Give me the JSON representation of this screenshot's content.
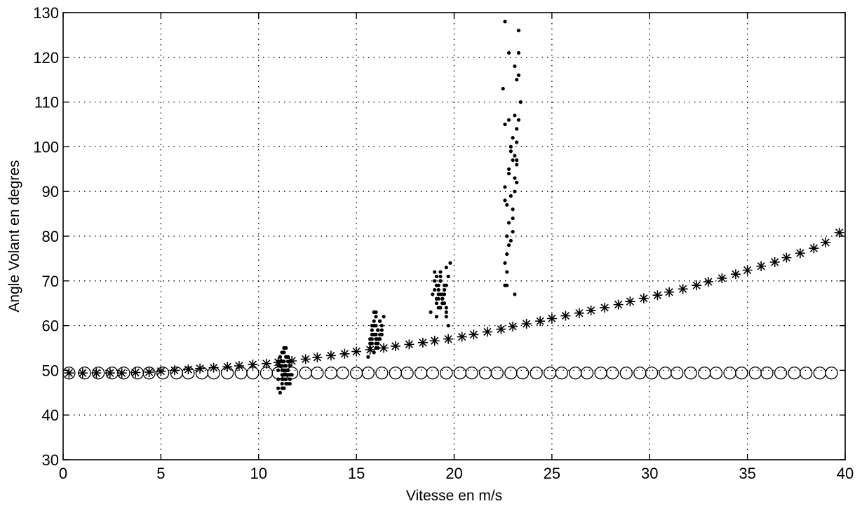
{
  "chart_data": {
    "type": "scatter",
    "title": "",
    "xlabel": "Vitesse en m/s",
    "ylabel": "Angle Volant en degres",
    "xlim": [
      0,
      40
    ],
    "ylim": [
      30,
      130
    ],
    "xticks": [
      "0",
      "5",
      "10",
      "15",
      "20",
      "25",
      "30",
      "35",
      "40"
    ],
    "yticks": [
      "30",
      "40",
      "50",
      "60",
      "70",
      "80",
      "90",
      "100",
      "110",
      "120",
      "130"
    ],
    "grid": true,
    "legend": "none",
    "series": [
      {
        "marker": "circle",
        "color": "#000000",
        "x": [
          0.3,
          1.1,
          1.8,
          2.5,
          3.1,
          3.8,
          4.4,
          5.1,
          5.8,
          6.4,
          7.1,
          7.7,
          8.4,
          9.1,
          9.7,
          10.4,
          11.0,
          11.7,
          12.4,
          13.0,
          13.7,
          14.3,
          15.0,
          15.6,
          16.3,
          17.0,
          17.6,
          18.3,
          18.9,
          19.6,
          20.3,
          20.9,
          21.6,
          22.2,
          22.9,
          23.5,
          24.2,
          24.9,
          25.5,
          26.2,
          26.8,
          27.5,
          28.1,
          28.8,
          29.5,
          30.1,
          30.8,
          31.4,
          32.1,
          32.8,
          33.4,
          34.1,
          34.7,
          35.4,
          36.0,
          36.7,
          37.4,
          38.0,
          38.7,
          39.3
        ],
        "y": [
          49.4,
          49.4,
          49.4,
          49.4,
          49.4,
          49.4,
          49.4,
          49.4,
          49.4,
          49.4,
          49.4,
          49.4,
          49.4,
          49.4,
          49.4,
          49.4,
          49.4,
          49.4,
          49.4,
          49.4,
          49.4,
          49.4,
          49.4,
          49.4,
          49.4,
          49.4,
          49.4,
          49.4,
          49.4,
          49.4,
          49.4,
          49.4,
          49.4,
          49.4,
          49.4,
          49.4,
          49.4,
          49.4,
          49.4,
          49.4,
          49.4,
          49.4,
          49.4,
          49.4,
          49.4,
          49.4,
          49.4,
          49.4,
          49.4,
          49.4,
          49.4,
          49.4,
          49.4,
          49.4,
          49.4,
          49.4,
          49.4,
          49.4,
          49.4,
          49.4
        ]
      },
      {
        "marker": "star",
        "color": "#000000",
        "x": [
          0.3,
          1.0,
          1.7,
          2.4,
          3.0,
          3.7,
          4.4,
          5.0,
          5.7,
          6.4,
          7.0,
          7.7,
          8.4,
          9.0,
          9.7,
          10.4,
          11.0,
          11.7,
          12.4,
          13.0,
          13.7,
          14.4,
          15.0,
          15.7,
          16.4,
          17.0,
          17.7,
          18.4,
          19.0,
          19.7,
          20.4,
          21.0,
          21.7,
          22.4,
          23.0,
          23.7,
          24.4,
          25.0,
          25.7,
          26.4,
          27.0,
          27.7,
          28.4,
          29.0,
          29.7,
          30.4,
          31.0,
          31.7,
          32.4,
          33.0,
          33.7,
          34.4,
          35.0,
          35.7,
          36.4,
          37.0,
          37.7,
          38.4,
          39.0,
          39.7
        ],
        "y": [
          49.4,
          49.4,
          49.4,
          49.4,
          49.4,
          49.5,
          49.6,
          49.8,
          50.0,
          50.2,
          50.4,
          50.6,
          50.8,
          51.0,
          51.3,
          51.5,
          51.8,
          52.1,
          52.5,
          52.9,
          53.3,
          53.7,
          54.2,
          54.6,
          55.0,
          55.4,
          55.8,
          56.2,
          56.6,
          57.0,
          57.5,
          58.0,
          58.6,
          59.2,
          59.8,
          60.4,
          61.0,
          61.6,
          62.2,
          62.8,
          63.4,
          64.0,
          64.7,
          65.4,
          66.1,
          66.8,
          67.5,
          68.2,
          69.0,
          69.8,
          70.6,
          71.5,
          72.4,
          73.3,
          74.2,
          75.2,
          76.2,
          77.3,
          78.6,
          80.8
        ]
      },
      {
        "marker": "dot",
        "color": "#000000",
        "x": [
          11.0,
          11.1,
          11.3,
          11.4,
          11.2,
          11.5,
          11.6,
          11.0,
          11.3,
          11.2,
          11.4,
          11.1,
          11.5,
          11.6,
          11.3,
          11.2,
          11.0,
          11.4,
          11.7,
          11.3,
          11.1,
          11.5,
          11.2,
          11.4,
          11.3,
          11.6,
          11.0,
          11.2,
          11.4,
          11.5,
          11.3,
          11.1,
          11.2,
          11.4,
          11.6,
          11.3,
          11.5,
          11.2,
          11.0,
          11.3,
          11.4,
          11.1,
          11.5,
          11.3,
          11.2,
          11.4,
          11.6,
          11.3,
          11.2,
          11.5,
          15.6,
          15.7,
          15.8,
          15.9,
          16.0,
          16.1,
          16.2,
          16.3,
          16.4,
          15.8,
          15.9,
          16.0,
          16.1,
          16.2,
          15.7,
          15.9,
          16.0,
          16.1,
          16.3,
          15.8,
          16.0,
          16.2,
          15.9,
          16.1,
          15.8,
          16.0,
          15.7,
          16.2,
          16.0,
          15.9,
          16.1,
          15.8,
          16.3,
          16.0,
          18.8,
          18.9,
          19.0,
          19.1,
          19.2,
          19.3,
          19.4,
          19.5,
          19.6,
          19.7,
          19.8,
          19.0,
          19.1,
          19.2,
          19.3,
          19.4,
          19.5,
          19.6,
          19.1,
          19.2,
          19.3,
          19.4,
          19.5,
          19.6,
          19.0,
          19.2,
          19.4,
          19.3,
          19.5,
          19.7,
          19.1,
          19.3,
          19.2,
          19.4,
          19.6,
          19.3,
          19.5,
          19.2,
          19.4,
          19.1,
          19.3,
          19.6,
          22.5,
          22.6,
          22.7,
          22.8,
          22.9,
          23.0,
          23.1,
          23.2,
          23.3,
          23.4,
          22.6,
          22.7,
          22.8,
          23.0,
          23.1,
          23.2,
          23.3,
          22.6,
          22.8,
          23.0,
          23.2,
          23.3,
          22.7,
          22.9,
          23.1,
          23.2,
          22.6,
          22.8,
          23.0,
          23.1,
          23.3,
          22.7,
          22.9,
          23.1,
          23.2,
          22.6,
          22.8,
          23.0,
          23.2,
          22.7,
          22.9,
          23.1,
          22.6,
          22.8
        ],
        "y": [
          46.0,
          53.0,
          50.0,
          55.0,
          48.0,
          52.0,
          47.0,
          51.0,
          49.0,
          54.0,
          50.0,
          45.0,
          53.0,
          51.0,
          48.0,
          52.0,
          50.0,
          47.0,
          49.0,
          55.0,
          51.0,
          50.0,
          46.0,
          53.0,
          52.0,
          49.0,
          48.0,
          54.0,
          51.0,
          47.0,
          50.0,
          52.0,
          49.0,
          53.0,
          48.0,
          51.0,
          50.0,
          47.0,
          52.0,
          54.0,
          49.0,
          51.0,
          53.0,
          46.0,
          50.0,
          48.0,
          52.0,
          55.0,
          51.0,
          49.0,
          53.0,
          55.0,
          58.0,
          61.0,
          63.0,
          59.0,
          57.0,
          60.0,
          62.0,
          56.0,
          54.0,
          57.0,
          59.0,
          61.0,
          56.0,
          58.0,
          60.0,
          55.0,
          59.0,
          57.0,
          62.0,
          58.0,
          60.0,
          56.0,
          59.0,
          55.0,
          57.0,
          61.0,
          58.0,
          63.0,
          57.0,
          60.0,
          58.0,
          56.0,
          63.0,
          67.0,
          70.0,
          65.0,
          68.0,
          72.0,
          66.0,
          69.0,
          64.0,
          71.0,
          74.0,
          68.0,
          62.0,
          66.0,
          70.0,
          65.0,
          67.0,
          73.0,
          69.0,
          64.0,
          71.0,
          66.0,
          68.0,
          63.0,
          72.0,
          67.0,
          65.0,
          70.0,
          68.0,
          60.0,
          66.0,
          64.0,
          69.0,
          67.0,
          62.0,
          70.0,
          65.0,
          68.0,
          66.0,
          71.0,
          67.0,
          69.0,
          113.0,
          128.0,
          80.0,
          121.0,
          99.0,
          86.0,
          93.0,
          104.0,
          126.0,
          110.0,
          74.0,
          69.0,
          83.0,
          97.0,
          90.0,
          115.0,
          121.0,
          88.0,
          78.0,
          102.0,
          96.0,
          106.0,
          76.0,
          100.0,
          67.0,
          92.0,
          105.0,
          95.0,
          81.0,
          98.0,
          116.0,
          72.0,
          89.0,
          107.0,
          101.0,
          69.0,
          94.0,
          84.0,
          97.0,
          87.0,
          79.0,
          118.0,
          91.0,
          106.0
        ]
      }
    ]
  }
}
